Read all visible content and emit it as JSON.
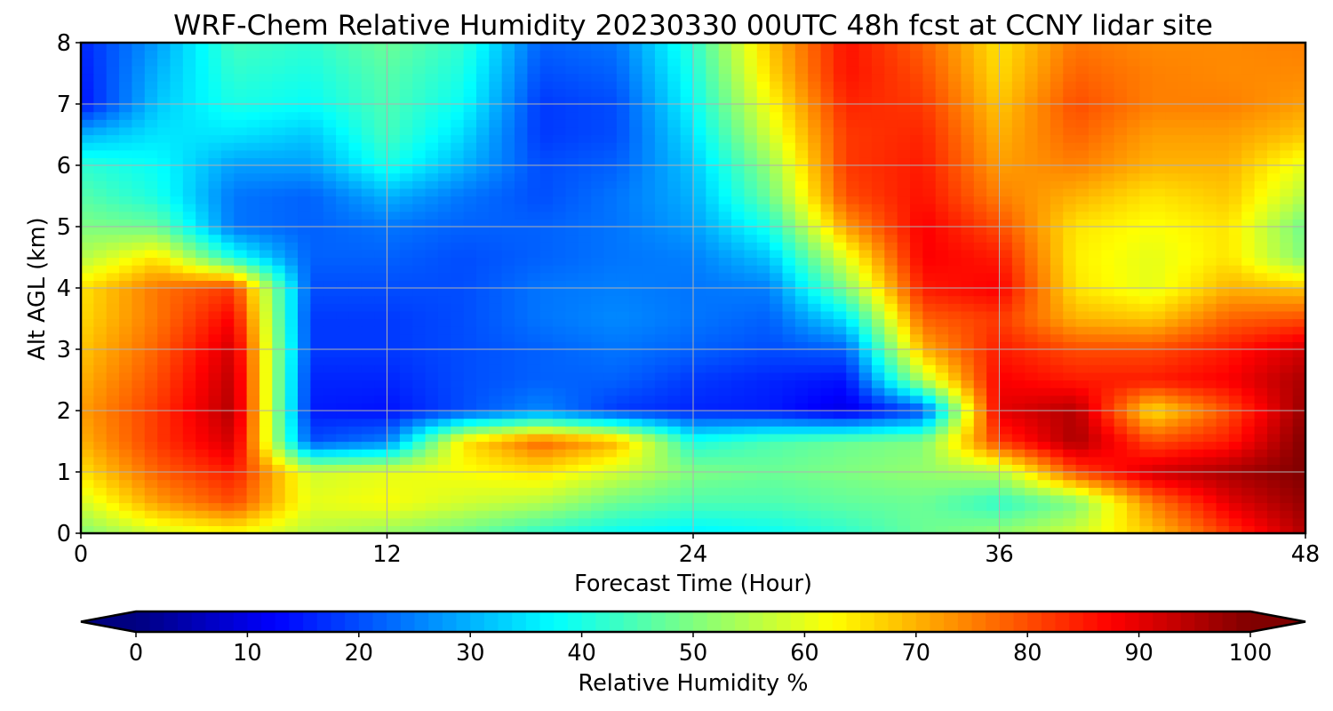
{
  "chart_data": {
    "type": "heatmap",
    "title": "WRF-Chem Relative Humidity 20230330 00UTC 48h fcst at CCNY lidar site",
    "xlabel": "Forecast Time (Hour)",
    "ylabel": "Alt AGL (km)",
    "xlim": [
      0,
      48
    ],
    "ylim": [
      0,
      8
    ],
    "x_ticks": [
      0,
      12,
      24,
      36,
      48
    ],
    "y_ticks": [
      0,
      1,
      2,
      3,
      4,
      5,
      6,
      7,
      8
    ],
    "grid": true,
    "colorscale": "jet",
    "colorbar": {
      "label": "Relative Humidity %",
      "ticks": [
        0,
        10,
        20,
        30,
        40,
        50,
        60,
        70,
        80,
        90,
        100
      ],
      "range": [
        0,
        100
      ],
      "extend": "both",
      "orientation": "horizontal"
    },
    "x": [
      0,
      3,
      6,
      9,
      12,
      15,
      18,
      21,
      24,
      27,
      30,
      33,
      36,
      39,
      42,
      45,
      48
    ],
    "y": [
      0,
      0.5,
      1,
      1.5,
      2,
      2.5,
      3,
      3.5,
      4,
      4.5,
      5,
      5.5,
      6,
      6.5,
      7,
      7.5,
      8
    ],
    "z": [
      [
        50,
        58,
        62,
        55,
        52,
        48,
        42,
        38,
        36,
        38,
        42,
        48,
        52,
        58,
        68,
        82,
        95
      ],
      [
        58,
        72,
        80,
        60,
        62,
        58,
        55,
        48,
        45,
        45,
        47,
        48,
        42,
        50,
        75,
        90,
        98
      ],
      [
        65,
        78,
        85,
        58,
        60,
        62,
        65,
        58,
        50,
        48,
        50,
        52,
        55,
        80,
        92,
        96,
        100
      ],
      [
        70,
        82,
        92,
        20,
        25,
        65,
        78,
        70,
        40,
        45,
        48,
        50,
        82,
        96,
        80,
        85,
        100
      ],
      [
        72,
        82,
        95,
        15,
        14,
        20,
        26,
        18,
        16,
        15,
        10,
        20,
        90,
        95,
        65,
        80,
        98
      ],
      [
        70,
        80,
        94,
        16,
        16,
        20,
        22,
        22,
        18,
        16,
        14,
        55,
        88,
        85,
        85,
        88,
        96
      ],
      [
        68,
        78,
        92,
        18,
        18,
        20,
        22,
        24,
        22,
        20,
        22,
        70,
        85,
        80,
        80,
        85,
        92
      ],
      [
        66,
        76,
        88,
        18,
        18,
        20,
        24,
        26,
        24,
        22,
        35,
        78,
        82,
        70,
        68,
        78,
        80
      ],
      [
        65,
        76,
        82,
        20,
        20,
        20,
        24,
        25,
        24,
        25,
        50,
        85,
        88,
        65,
        60,
        70,
        68
      ],
      [
        55,
        65,
        40,
        22,
        22,
        20,
        22,
        24,
        25,
        32,
        60,
        88,
        85,
        64,
        60,
        65,
        50
      ],
      [
        50,
        48,
        24,
        22,
        24,
        22,
        22,
        24,
        28,
        40,
        72,
        88,
        80,
        65,
        62,
        65,
        48
      ],
      [
        46,
        40,
        24,
        22,
        30,
        24,
        20,
        24,
        30,
        48,
        80,
        86,
        75,
        70,
        65,
        68,
        55
      ],
      [
        42,
        38,
        28,
        28,
        40,
        30,
        20,
        22,
        32,
        52,
        82,
        85,
        72,
        75,
        70,
        70,
        60
      ],
      [
        30,
        35,
        35,
        32,
        44,
        34,
        18,
        20,
        35,
        58,
        82,
        84,
        70,
        78,
        72,
        72,
        68
      ],
      [
        14,
        32,
        40,
        38,
        45,
        38,
        18,
        20,
        38,
        62,
        84,
        82,
        68,
        80,
        75,
        75,
        72
      ],
      [
        15,
        30,
        42,
        40,
        46,
        40,
        20,
        22,
        40,
        66,
        86,
        80,
        66,
        78,
        75,
        74,
        74
      ],
      [
        16,
        28,
        44,
        42,
        48,
        42,
        22,
        24,
        42,
        68,
        86,
        78,
        65,
        76,
        74,
        74,
        75
      ]
    ]
  }
}
